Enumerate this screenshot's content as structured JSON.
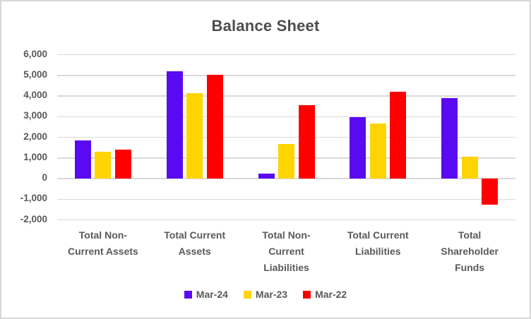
{
  "chart_data": {
    "type": "bar",
    "title": "Balance Sheet",
    "categories": [
      "Total Non-\nCurrent Assets",
      "Total Current\nAssets",
      "Total Non-\nCurrent\nLiabilities",
      "Total Current\nLiabilities",
      "Total\nShareholder\nFunds"
    ],
    "series": [
      {
        "name": "Mar-24",
        "color": "#5A0AF0",
        "values": [
          1860,
          5190,
          250,
          2980,
          3890
        ]
      },
      {
        "name": "Mar-23",
        "color": "#FFD400",
        "values": [
          1310,
          4120,
          1690,
          2670,
          1060
        ]
      },
      {
        "name": "Mar-22",
        "color": "#FF0000",
        "values": [
          1390,
          5030,
          3550,
          4200,
          -1280
        ]
      }
    ],
    "ylim": [
      -2000,
      6000
    ],
    "ytick_step": 1000,
    "yticks": [
      6000,
      5000,
      4000,
      3000,
      2000,
      1000,
      0,
      -1000,
      -2000
    ],
    "ytick_labels": [
      "6,000",
      "5,000",
      "4,000",
      "3,000",
      "2,000",
      "1,000",
      "0",
      "-1,000",
      "-2,000"
    ],
    "grid": true,
    "legend_position": "bottom"
  },
  "colors": {
    "gridline": "#D9D9D9",
    "axis_text": "#595959",
    "title_text": "#4d4d4d",
    "frame_border": "#D7D7D7"
  }
}
